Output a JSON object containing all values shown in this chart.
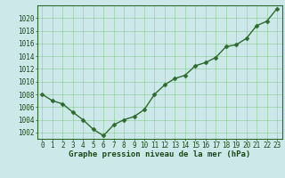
{
  "x": [
    0,
    1,
    2,
    3,
    4,
    5,
    6,
    7,
    8,
    9,
    10,
    11,
    12,
    13,
    14,
    15,
    16,
    17,
    18,
    19,
    20,
    21,
    22,
    23
  ],
  "y": [
    1008.0,
    1007.0,
    1006.5,
    1005.2,
    1004.0,
    1002.5,
    1001.5,
    1003.2,
    1004.0,
    1004.5,
    1005.6,
    1008.0,
    1009.5,
    1010.5,
    1011.0,
    1012.5,
    1013.0,
    1013.8,
    1015.5,
    1015.8,
    1016.8,
    1018.8,
    1019.5,
    1021.5
  ],
  "line_color": "#2d6a2d",
  "marker_color": "#2d6a2d",
  "bg_color": "#cce8e8",
  "grid_color": "#5aba5a",
  "xlabel": "Graphe pression niveau de la mer (hPa)",
  "yticks": [
    1002,
    1004,
    1006,
    1008,
    1010,
    1012,
    1014,
    1016,
    1018,
    1020
  ],
  "xticks": [
    0,
    1,
    2,
    3,
    4,
    5,
    6,
    7,
    8,
    9,
    10,
    11,
    12,
    13,
    14,
    15,
    16,
    17,
    18,
    19,
    20,
    21,
    22,
    23
  ],
  "xlabel_fontsize": 6.5,
  "tick_fontsize": 5.5,
  "line_width": 1.0,
  "marker_size": 2.5
}
